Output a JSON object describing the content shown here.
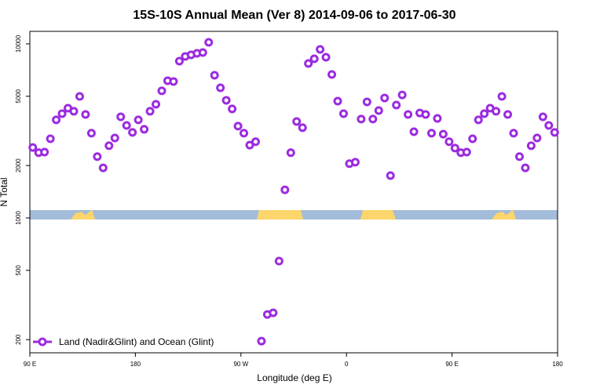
{
  "chart_data": {
    "type": "scatter",
    "title": "15S-10S Annual Mean (Ver 8)   2014-09-06 to 2017-06-30",
    "x_label": "Longitude (deg E)",
    "y_label": "N Total",
    "log_y": true,
    "color": "#9b2be0",
    "xlim": [
      90,
      540
    ],
    "ylim": [
      168,
      11800
    ],
    "xticks": [
      {
        "value": 90,
        "label": "90 E"
      },
      180,
      {
        "value": 270,
        "label": "90 W"
      },
      {
        "value": 360,
        "label": "0"
      },
      {
        "value": 450,
        "label": "90 E"
      },
      {
        "value": 540,
        "label": "180"
      }
    ],
    "yticks": [
      200,
      500,
      1000,
      2000,
      5000,
      10000
    ],
    "series": [
      {
        "name": "Land (Nadir&Glint) and Ocean (Glint)",
        "color": "#9b2be0",
        "x": [
          92.5,
          97.5,
          102.5,
          107.5,
          112.5,
          117.5,
          122.5,
          127.5,
          132.5,
          137.5,
          142.5,
          147.5,
          152.5,
          157.5,
          162.5,
          167.5,
          172.5,
          177.5,
          182.5,
          187.5,
          192.5,
          197.5,
          202.5,
          207.5,
          212.5,
          217.5,
          222.5,
          227.5,
          232.5,
          237.5,
          242.5,
          247.5,
          252.5,
          257.5,
          262.5,
          267.5,
          272.5,
          277.5,
          282.5,
          287.5,
          292.5,
          297.5,
          302.5,
          307.5,
          312.5,
          317.5,
          322.5,
          327.5,
          332.5,
          337.5,
          342.5,
          347.5,
          352.5,
          357.5,
          362.5,
          367.5,
          372.5,
          377.5,
          382.5,
          387.5,
          392.5,
          397.5,
          402.5,
          407.5,
          412.5,
          417.5,
          422.5,
          427.5,
          432.5,
          437.5,
          442.5,
          447.5,
          452.5,
          457.5,
          462.5,
          467.5,
          472.5,
          477.5,
          482.5,
          487.5,
          492.5,
          497.5,
          502.5,
          507.5,
          512.5,
          517.5,
          522.5,
          527.5,
          532.5,
          537.5
        ],
        "values": [
          2540,
          2370,
          2390,
          2850,
          3660,
          3970,
          4270,
          4100,
          4990,
          3930,
          3070,
          2250,
          1940,
          2600,
          2880,
          3810,
          3400,
          3100,
          3660,
          3230,
          4100,
          4500,
          5370,
          6140,
          6080,
          7960,
          8470,
          8650,
          8830,
          8920,
          10210,
          6600,
          5590,
          4740,
          4230,
          3370,
          3070,
          2620,
          2740,
          196,
          279,
          285,
          565,
          1450,
          2370,
          3580,
          3300,
          7710,
          8210,
          9300,
          8380,
          6670,
          4690,
          3970,
          2050,
          2090,
          3700,
          4640,
          3700,
          4140,
          4890,
          1750,
          4450,
          5090,
          3930,
          3130,
          4010,
          3930,
          3070,
          3730,
          3030,
          2740,
          2520,
          2370,
          2390,
          2850,
          3660,
          3970,
          4270,
          4100,
          4990,
          3930,
          3070,
          2250,
          1940,
          2600,
          2880,
          3810,
          3400,
          3100
        ]
      }
    ]
  }
}
